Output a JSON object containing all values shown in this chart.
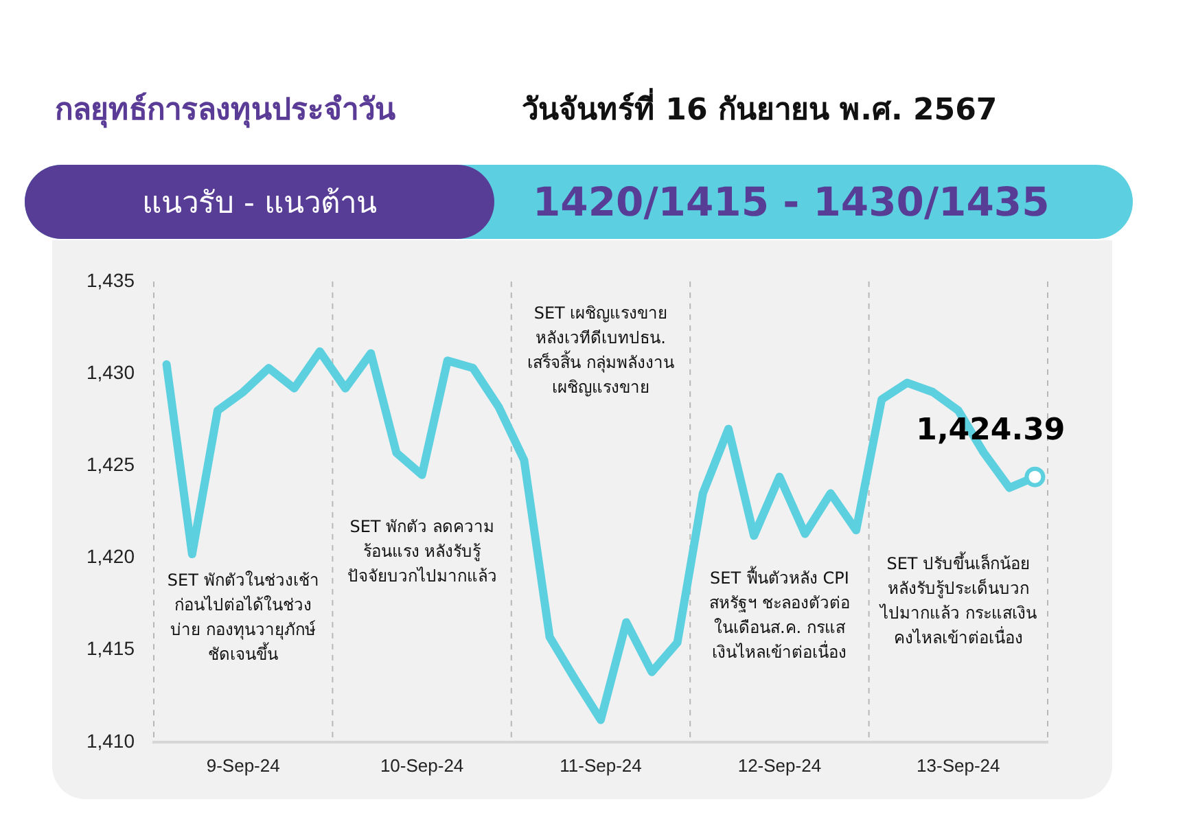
{
  "chart_data": {
    "type": "line",
    "title": "กลยุทธ์การลงทุนประจำวัน",
    "subtitle": "วันจันทร์ที่ 16 กันยายน พ.ศ. 2567",
    "annotations": [
      "แนวรับ - แนวต้าน",
      "1420/1415 - 1430/1435",
      "SET พักตัวในช่วงเช้า\nก่อนไปต่อได้ในช่วง\nบ่าย กองทุนวายุภักษ์\nชัดเจนขึ้น",
      "SET พักตัว ลดความ\nร้อนแรง หลังรับรู้\nปัจจัยบวกไปมากแล้ว",
      "SET เผชิญแรงขาย\nหลังเวทีดีเบทปธน.\nเสร็จสิ้น กลุ่มพลังงาน\nเผชิญแรงขาย",
      "SET ฟื้นตัวหลัง CPI\nสหรัฐฯ ชะลองตัวต่อ\nในเดือนส.ค. กรแส\nเงินไหลเข้าต่อเนื่อง",
      "SET ปรับขึ้นเล็กน้อย\nหลังรับรู้ประเด็นบวก\nไปมากแล้ว กระแสเงิน\nคงไหลเข้าต่อเนื่อง"
    ],
    "categories": [
      null,
      null,
      null,
      "9-Sep-24",
      null,
      null,
      null,
      null,
      null,
      null,
      "10-Sep-24",
      null,
      null,
      null,
      null,
      null,
      null,
      "11-Sep-24",
      null,
      null,
      null,
      null,
      null,
      null,
      "12-Sep-24",
      null,
      null,
      null,
      null,
      null,
      null,
      "13-Sep-24",
      null,
      null,
      null
    ],
    "series": [
      {
        "color": "#5dd0df",
        "values": [
          1430.5,
          1420.2,
          1428.0,
          1429.0,
          1430.3,
          1429.2,
          1431.2,
          1429.2,
          1431.1,
          1425.7,
          1424.5,
          1430.7,
          1430.3,
          1428.2,
          1425.3,
          1415.7,
          1413.4,
          1411.2,
          1416.5,
          1413.8,
          1415.4,
          1423.5,
          1427.0,
          1421.2,
          1424.4,
          1421.3,
          1423.5,
          1421.5,
          1428.6,
          1429.5,
          1429.0,
          1428.0,
          1425.7,
          1423.8,
          1424.39
        ],
        "value_labels": [
          null,
          null,
          null,
          null,
          null,
          null,
          null,
          null,
          null,
          null,
          null,
          null,
          null,
          null,
          null,
          null,
          null,
          null,
          null,
          null,
          null,
          null,
          null,
          null,
          null,
          null,
          null,
          null,
          null,
          null,
          null,
          null,
          null,
          null,
          "1,424.39"
        ]
      }
    ],
    "ylim": [
      1410,
      1435
    ],
    "yticks": [
      {
        "value": 1410,
        "label": "1,410"
      },
      {
        "value": 1415,
        "label": "1,415"
      },
      {
        "value": 1420,
        "label": "1,420"
      },
      {
        "value": 1425,
        "label": "1,425"
      },
      {
        "value": 1430,
        "label": "1,430"
      },
      {
        "value": 1435,
        "label": "1,435"
      }
    ],
    "grid": false,
    "legend": false
  }
}
